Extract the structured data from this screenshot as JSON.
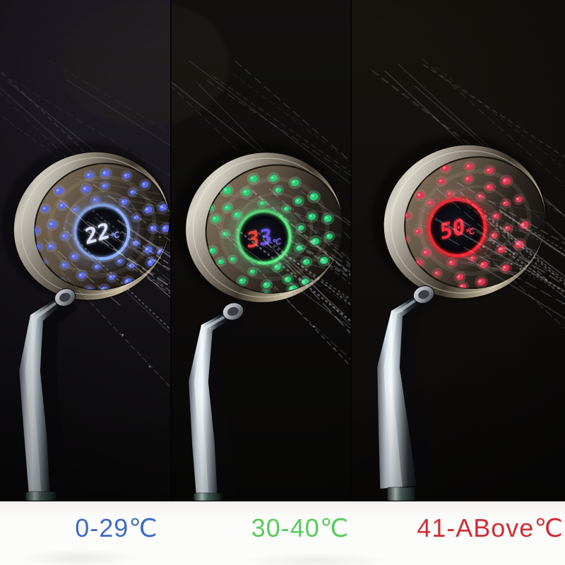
{
  "scene": {
    "panels": [
      {
        "bg_top": "#211e26",
        "bg_mid": "#17151b",
        "bg_bot": "#0a0909"
      },
      {
        "bg_top": "#121110",
        "bg_mid": "#0c0b0a",
        "bg_bot": "#080807"
      },
      {
        "bg_top": "#17140f",
        "bg_mid": "#100e0c",
        "bg_bot": "#0a0908"
      }
    ],
    "heads": [
      {
        "id": "cold",
        "temp_value": "22",
        "temp_unit": "℃",
        "dot_color": "#5a6af5",
        "glow_color": "#9aaaff",
        "ring_color": "#8fb0ff",
        "digit_colors": [
          "#dde4ff",
          "#dde4ff"
        ],
        "unit_color": "#96a8ff"
      },
      {
        "id": "warm",
        "temp_value": "33",
        "temp_unit": "℃",
        "dot_color": "#22d678",
        "glow_color": "#7dffb0",
        "ring_color": "#55ec82",
        "digit_colors": [
          "#e8423a",
          "#6a57e8"
        ],
        "unit_color": "#7a68f0"
      },
      {
        "id": "hot",
        "temp_value": "50",
        "temp_unit": "℃",
        "dot_color": "#e83550",
        "glow_color": "#ff7080",
        "ring_color": "#ff2435",
        "digit_colors": [
          "#ff3040",
          "#ff3040"
        ],
        "unit_color": "#ff4050"
      }
    ]
  },
  "legend": {
    "items": [
      {
        "label": "0-29℃",
        "color": "#3e6cc3"
      },
      {
        "label": "30-40℃",
        "color": "#57cb5c"
      },
      {
        "label": "41-ABove℃",
        "color": "#d02d35"
      }
    ]
  }
}
